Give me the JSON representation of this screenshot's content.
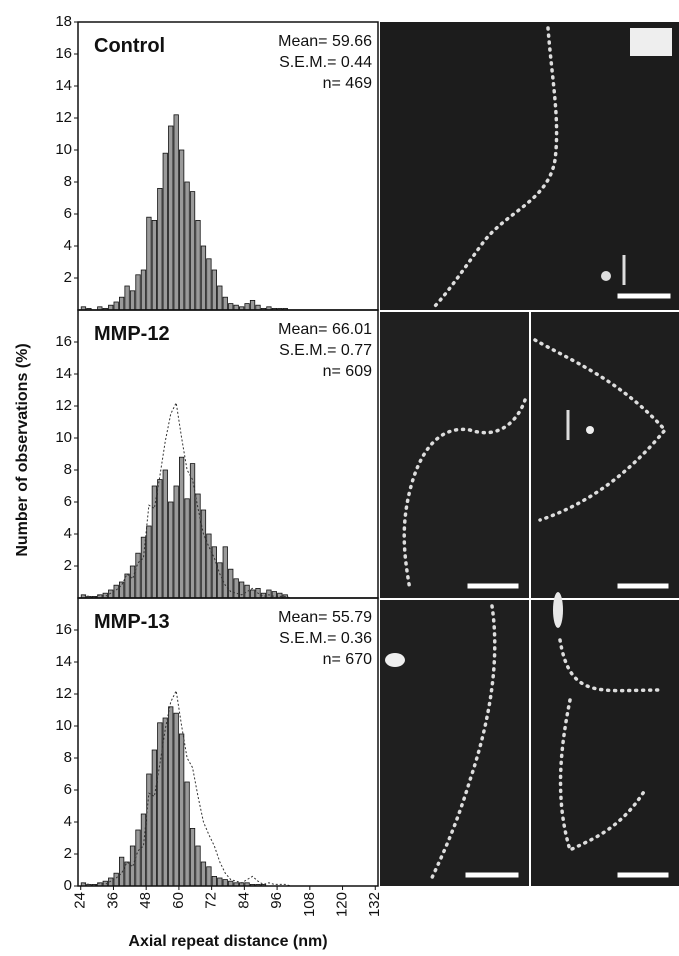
{
  "chart_data": [
    {
      "type": "histogram",
      "title": "Control",
      "annotations": [
        "Mean= 59.66",
        "S.E.M.= 0.44",
        "n= 469"
      ],
      "bins": [
        24,
        26,
        28,
        30,
        32,
        34,
        36,
        38,
        40,
        42,
        44,
        46,
        48,
        50,
        52,
        54,
        56,
        58,
        60,
        62,
        64,
        66,
        68,
        70,
        72,
        74,
        76,
        78,
        80,
        82,
        84,
        86,
        88,
        90,
        92,
        94,
        96,
        98,
        100,
        102,
        104,
        106,
        108,
        110,
        112,
        114,
        116,
        118,
        120,
        122,
        124,
        126,
        128,
        130,
        132
      ],
      "values": [
        0.2,
        0.1,
        0,
        0.2,
        0.1,
        0.3,
        0.5,
        0.8,
        1.5,
        1.2,
        2.2,
        2.5,
        5.8,
        5.6,
        7.6,
        9.8,
        11.5,
        12.2,
        10,
        8,
        7.4,
        5.6,
        4,
        3.2,
        2.5,
        1.5,
        0.8,
        0.4,
        0.3,
        0.2,
        0.4,
        0.6,
        0.3,
        0.1,
        0.2,
        0.1,
        0.1,
        0.1,
        0,
        0,
        0,
        0,
        0,
        0,
        0,
        0,
        0,
        0,
        0,
        0,
        0,
        0,
        0,
        0
      ],
      "color": "#9a9a9a",
      "xlim": [
        23,
        133
      ],
      "ylim": [
        0,
        18
      ],
      "yticks": [
        2,
        4,
        6,
        8,
        10,
        12,
        14,
        16,
        18
      ]
    },
    {
      "type": "histogram",
      "title": "MMP-12",
      "annotations": [
        "Mean= 66.01",
        "S.E.M.= 0.77",
        "n= 609"
      ],
      "ylabel": "Number of observations (%)",
      "bins": [
        24,
        26,
        28,
        30,
        32,
        34,
        36,
        38,
        40,
        42,
        44,
        46,
        48,
        50,
        52,
        54,
        56,
        58,
        60,
        62,
        64,
        66,
        68,
        70,
        72,
        74,
        76,
        78,
        80,
        82,
        84,
        86,
        88,
        90,
        92,
        94,
        96,
        98,
        100,
        102,
        104,
        106,
        108,
        110,
        112,
        114,
        116,
        118,
        120,
        122,
        124,
        126,
        128,
        130,
        132
      ],
      "values": [
        0.2,
        0.1,
        0.1,
        0.2,
        0.3,
        0.5,
        0.8,
        1,
        1.5,
        2,
        2.8,
        3.8,
        4.5,
        7,
        7.4,
        8,
        6,
        7,
        8.8,
        6.2,
        8.4,
        6.5,
        5.5,
        4,
        3.2,
        2.2,
        3.2,
        1.8,
        1.2,
        1,
        0.8,
        0.5,
        0.6,
        0.3,
        0.5,
        0.4,
        0.3,
        0.2,
        0,
        0,
        0,
        0,
        0,
        0,
        0,
        0,
        0,
        0,
        0,
        0,
        0,
        0,
        0,
        0
      ],
      "color": "#9a9a9a",
      "xlim": [
        23,
        133
      ],
      "ylim": [
        0,
        18
      ],
      "yticks": [
        2,
        4,
        6,
        8,
        10,
        12,
        14,
        16
      ],
      "reference_outline": true
    },
    {
      "type": "histogram",
      "title": "MMP-13",
      "annotations": [
        "Mean= 55.79",
        "S.E.M.= 0.36",
        "n= 670"
      ],
      "xlabel": "Axial repeat distance (nm)",
      "bins": [
        24,
        26,
        28,
        30,
        32,
        34,
        36,
        38,
        40,
        42,
        44,
        46,
        48,
        50,
        52,
        54,
        56,
        58,
        60,
        62,
        64,
        66,
        68,
        70,
        72,
        74,
        76,
        78,
        80,
        82,
        84,
        86,
        88,
        90,
        92,
        94,
        96,
        98,
        100,
        102,
        104,
        106,
        108,
        110,
        112,
        114,
        116,
        118,
        120,
        122,
        124,
        126,
        128,
        130,
        132
      ],
      "values": [
        0.2,
        0.1,
        0.1,
        0.2,
        0.3,
        0.5,
        0.8,
        1.8,
        1.5,
        2.5,
        3.5,
        4.5,
        7,
        8.5,
        10.2,
        10.5,
        11.2,
        10.8,
        9.5,
        6.5,
        3.6,
        2.5,
        1.5,
        1.2,
        0.6,
        0.5,
        0.4,
        0.3,
        0.2,
        0.2,
        0.2,
        0.1,
        0.1,
        0.1,
        0,
        0,
        0,
        0,
        0,
        0,
        0,
        0,
        0,
        0,
        0,
        0,
        0,
        0,
        0,
        0,
        0,
        0,
        0,
        0
      ],
      "color": "#9a9a9a",
      "xlim": [
        23,
        133
      ],
      "ylim": [
        0,
        18
      ],
      "yticks": [
        0,
        2,
        4,
        6,
        8,
        10,
        12,
        14,
        16
      ],
      "xticks": [
        24,
        36,
        48,
        60,
        72,
        84,
        96,
        108,
        120,
        132
      ],
      "reference_outline": true
    }
  ]
}
